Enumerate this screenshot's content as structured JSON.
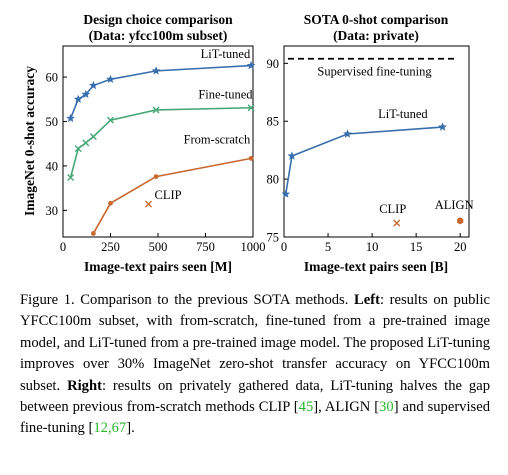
{
  "chart_data": [
    {
      "type": "line",
      "title": "Design choice comparison",
      "subtitle": "(Data: yfcc100m subset)",
      "xlabel": "Image-text pairs seen [M]",
      "ylabel": "ImageNet 0-shot accuracy",
      "xlim": [
        0,
        1000
      ],
      "ylim": [
        24,
        67
      ],
      "xticks": [
        0,
        250,
        500,
        750,
        1000
      ],
      "yticks": [
        30,
        40,
        50,
        60
      ],
      "grid": false,
      "series": [
        {
          "name": "LiT-tuned",
          "color": "#3a6fae",
          "marker": "star",
          "x": [
            40,
            80,
            120,
            160,
            250,
            490,
            990
          ],
          "y": [
            50.7,
            55.0,
            56.1,
            58.1,
            59.5,
            61.4,
            62.6
          ]
        },
        {
          "name": "Fine-tuned",
          "color": "#47a677",
          "marker": "x",
          "x": [
            40,
            80,
            120,
            160,
            250,
            490,
            990
          ],
          "y": [
            37.4,
            43.9,
            45.2,
            46.6,
            50.3,
            52.6,
            53.1
          ]
        },
        {
          "name": "From-scratch",
          "color": "#c8672e",
          "marker": "circle",
          "x": [
            160,
            250,
            490,
            990
          ],
          "y": [
            24.8,
            31.6,
            37.6,
            41.7
          ]
        }
      ],
      "points": [
        {
          "name": "CLIP",
          "color": "#c8672e",
          "marker": "x",
          "x": 450,
          "y": 31.4
        }
      ]
    },
    {
      "type": "line",
      "title": "SOTA 0-shot comparison",
      "subtitle": "(Data: private)",
      "xlabel": "Image-text pairs seen [B]",
      "ylabel": "",
      "xlim": [
        0,
        21
      ],
      "ylim": [
        75,
        91.5
      ],
      "xticks": [
        0,
        5,
        10,
        15,
        20
      ],
      "yticks": [
        75,
        80,
        85,
        90
      ],
      "grid": false,
      "reference_line": {
        "name": "Supervised fine-tuning",
        "y": 90.4,
        "style": "dashed",
        "color": "#000000"
      },
      "series": [
        {
          "name": "LiT-tuned",
          "color": "#3a6fae",
          "marker": "star",
          "x": [
            0.2,
            0.9,
            7.2,
            18.0
          ],
          "y": [
            78.7,
            82.0,
            83.9,
            84.5
          ]
        }
      ],
      "points": [
        {
          "name": "CLIP",
          "color": "#c8672e",
          "marker": "x",
          "x": 12.8,
          "y": 76.2
        },
        {
          "name": "ALIGN",
          "color": "#c8672e",
          "marker": "hexagon",
          "x": 20.0,
          "y": 76.4
        }
      ]
    }
  ],
  "caption": {
    "fig_label": "Figure 1.",
    "intro": "Comparison to the previous SOTA methods.",
    "left_label": "Left",
    "left_text": ": results on public YFCC100m subset, with from-scratch, fine-tuned from a pre-trained image model, and LiT-tuned from a pre-trained image model. The proposed LiT-tuning improves over 30% ImageNet zero-shot transfer accuracy on YFCC100m subset.",
    "right_label": "Right",
    "right_text_1": ": results on privately gathered data, LiT-tuning halves the gap between previous from-scratch methods CLIP [",
    "ref_clip": "45",
    "right_text_2": "], ALIGN [",
    "ref_align": "30",
    "right_text_3": "] and supervised fine-tuning [",
    "ref_ft": "12,67",
    "right_text_4": "]."
  }
}
